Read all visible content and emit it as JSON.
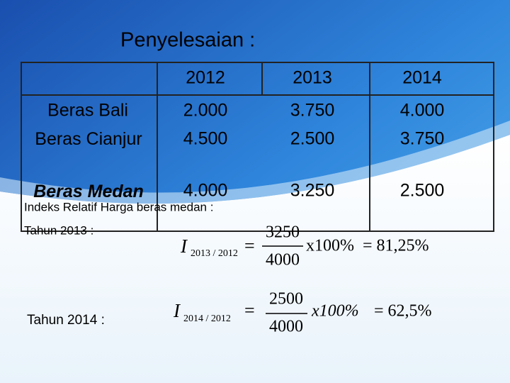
{
  "title": "Penyelesaian :",
  "table": {
    "header": [
      "2012",
      "2013",
      "2014"
    ],
    "rows": [
      [
        "Beras Bali",
        "2.000",
        "3.750",
        "4.000"
      ],
      [
        "Beras Cianjur",
        "4.500",
        "2.500",
        "3.750"
      ],
      [
        "Beras Medan",
        "4.000",
        "3.250",
        "2.500"
      ]
    ]
  },
  "notes": {
    "heading": "Indeks Relatif Harga beras medan :",
    "year_2013": "Tahun 2013 :",
    "year_2014": "Tahun 2014 :"
  },
  "formulas": [
    {
      "symbol": "I",
      "subscript": "2013 / 2012",
      "equals": "=",
      "numerator": "3250",
      "denominator": "4000",
      "factor": "x100%",
      "result": "= 81,25%"
    },
    {
      "symbol": "I",
      "subscript": "2014 / 2012",
      "equals": "=",
      "numerator": "2500",
      "denominator": "4000",
      "factor": "x100%",
      "result": "= 62,5%"
    }
  ]
}
